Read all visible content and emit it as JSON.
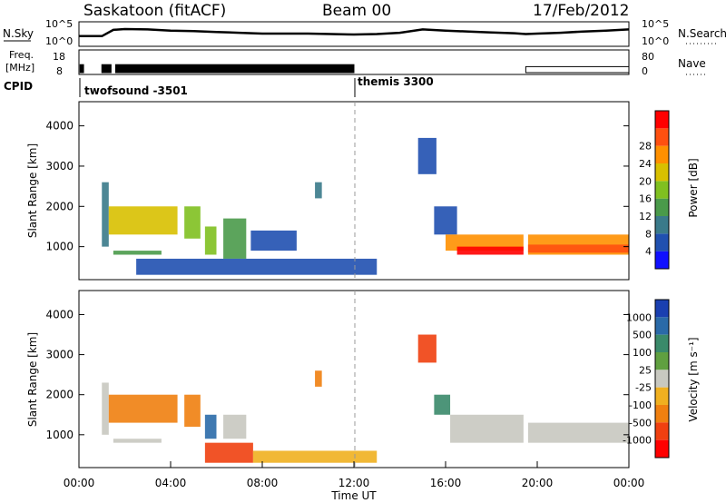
{
  "header": {
    "station": "Saskatoon (fitACF)",
    "beam": "Beam 00",
    "date": "17/Feb/2012"
  },
  "noise_panel": {
    "left_label": "N.Sky",
    "right_label": "N.Search",
    "ticks_left": [
      "10^5",
      "10^0"
    ],
    "ticks_right": [
      "10^5",
      "10^0"
    ]
  },
  "freq_panel": {
    "left_label_1": "Freq.",
    "left_label_2": "[MHz]",
    "right_label": "Nave",
    "ticks_left": [
      "18",
      "8"
    ],
    "ticks_right": [
      "80",
      "0"
    ]
  },
  "cpid": {
    "label": "CPID",
    "modes": [
      {
        "name": "twofsound -3501",
        "start_hour": 0.0
      },
      {
        "name": "themis 3300",
        "start_hour": 12.0
      }
    ]
  },
  "colors": {
    "power": [
      "#1010ff",
      "#2050b0",
      "#3a7a8a",
      "#4a9a4a",
      "#80c020",
      "#d8c000",
      "#ff9000",
      "#ff5010",
      "#ff0000"
    ],
    "velocity": [
      "#1a3fb0",
      "#2a6aa8",
      "#3a8a6a",
      "#60a040",
      "#c8c8c0",
      "#f0b020",
      "#f08010",
      "#f04010",
      "#ff0000"
    ]
  },
  "chart_data": [
    {
      "type": "line",
      "name": "noise",
      "x": [
        0,
        1,
        1.5,
        2,
        3,
        4,
        5,
        6,
        7,
        8,
        9,
        10,
        11,
        12,
        13,
        14,
        15,
        16,
        17,
        18,
        19,
        19.5,
        20,
        21,
        22,
        23,
        24
      ],
      "y_log10": [
        2,
        2,
        3.5,
        3.7,
        3.6,
        3.3,
        3.2,
        3.0,
        2.8,
        2.6,
        2.6,
        2.6,
        2.5,
        2.4,
        2.5,
        2.8,
        3.6,
        3.3,
        3.1,
        2.9,
        2.7,
        2.5,
        2.6,
        2.8,
        3.1,
        3.3,
        3.6
      ],
      "ylim": [
        0,
        5
      ]
    },
    {
      "type": "line",
      "name": "frequency",
      "x": [
        0.05,
        0.2,
        1.0,
        1.4,
        1.6,
        12.0,
        19.5,
        19.7,
        24.0
      ],
      "y": [
        12,
        12,
        12,
        12,
        12,
        12,
        11,
        11,
        11
      ],
      "ylim": [
        8,
        18
      ]
    },
    {
      "type": "heatmap",
      "title": "",
      "ylabel": "Slant Range [km]",
      "xlim": [
        0,
        24
      ],
      "ylim": [
        180,
        4600
      ],
      "yticks": [
        1000,
        2000,
        3000,
        4000
      ],
      "colorbar": {
        "label": "Power [dB]",
        "ticks": [
          "4",
          "8",
          "12",
          "16",
          "20",
          "24",
          "28"
        ],
        "range": [
          0,
          30
        ]
      },
      "regions": [
        {
          "t0": 1.0,
          "t1": 1.3,
          "r0": 1000,
          "r1": 2600,
          "v": 8
        },
        {
          "t0": 1.3,
          "t1": 4.3,
          "r0": 1300,
          "r1": 2000,
          "v": 18
        },
        {
          "t0": 1.5,
          "t1": 3.6,
          "r0": 800,
          "r1": 900,
          "v": 10
        },
        {
          "t0": 4.6,
          "t1": 5.3,
          "r0": 1200,
          "r1": 2000,
          "v": 14
        },
        {
          "t0": 5.5,
          "t1": 6.0,
          "r0": 800,
          "r1": 1500,
          "v": 16
        },
        {
          "t0": 6.3,
          "t1": 7.3,
          "r0": 700,
          "r1": 1700,
          "v": 10
        },
        {
          "t0": 7.5,
          "t1": 9.5,
          "r0": 900,
          "r1": 1400,
          "v": 6
        },
        {
          "t0": 2.5,
          "t1": 13.0,
          "r0": 300,
          "r1": 700,
          "v": 5
        },
        {
          "t0": 10.3,
          "t1": 10.6,
          "r0": 2200,
          "r1": 2600,
          "v": 8
        },
        {
          "t0": 14.8,
          "t1": 15.6,
          "r0": 2800,
          "r1": 3700,
          "v": 6
        },
        {
          "t0": 15.5,
          "t1": 16.5,
          "r0": 1300,
          "r1": 2000,
          "v": 5
        },
        {
          "t0": 16.0,
          "t1": 19.4,
          "r0": 900,
          "r1": 1300,
          "v": 20
        },
        {
          "t0": 19.6,
          "t1": 24.0,
          "r0": 800,
          "r1": 1300,
          "v": 20
        },
        {
          "t0": 16.5,
          "t1": 19.4,
          "r0": 800,
          "r1": 1000,
          "v": 27
        },
        {
          "t0": 19.6,
          "t1": 24.0,
          "r0": 850,
          "r1": 1050,
          "v": 26
        }
      ]
    },
    {
      "type": "heatmap",
      "title": "",
      "xlabel": "Time UT",
      "ylabel": "Slant Range [km]",
      "xlim": [
        0,
        24
      ],
      "ylim": [
        180,
        4600
      ],
      "xticks": [
        "00:00",
        "04:00",
        "08:00",
        "12:00",
        "16:00",
        "20:00",
        "00:00"
      ],
      "yticks": [
        1000,
        2000,
        3000,
        4000
      ],
      "colorbar": {
        "label": "Velocity [m s⁻¹]",
        "ticks": [
          "1000",
          "500",
          "100",
          "25",
          "-25",
          "-100",
          "-500",
          "-1000"
        ]
      },
      "regions": [
        {
          "t0": 1.0,
          "t1": 1.3,
          "r0": 1000,
          "r1": 2300,
          "v": 0
        },
        {
          "t0": 1.3,
          "t1": 4.3,
          "r0": 1300,
          "r1": 2000,
          "v": -120
        },
        {
          "t0": 1.5,
          "t1": 3.6,
          "r0": 800,
          "r1": 900,
          "v": 0
        },
        {
          "t0": 4.6,
          "t1": 5.3,
          "r0": 1200,
          "r1": 2000,
          "v": -100
        },
        {
          "t0": 5.5,
          "t1": 6.0,
          "r0": 900,
          "r1": 1500,
          "v": 200
        },
        {
          "t0": 6.3,
          "t1": 7.3,
          "r0": 900,
          "r1": 1500,
          "v": 0
        },
        {
          "t0": 5.5,
          "t1": 7.6,
          "r0": 300,
          "r1": 800,
          "v": -200
        },
        {
          "t0": 7.6,
          "t1": 13.0,
          "r0": 300,
          "r1": 600,
          "v": -60
        },
        {
          "t0": 10.3,
          "t1": 10.6,
          "r0": 2200,
          "r1": 2600,
          "v": -150
        },
        {
          "t0": 14.8,
          "t1": 15.6,
          "r0": 2800,
          "r1": 3500,
          "v": -300
        },
        {
          "t0": 15.5,
          "t1": 16.2,
          "r0": 1500,
          "r1": 2000,
          "v": 50
        },
        {
          "t0": 16.2,
          "t1": 19.4,
          "r0": 800,
          "r1": 1500,
          "v": 0
        },
        {
          "t0": 19.6,
          "t1": 24.0,
          "r0": 800,
          "r1": 1300,
          "v": 0
        }
      ]
    }
  ]
}
